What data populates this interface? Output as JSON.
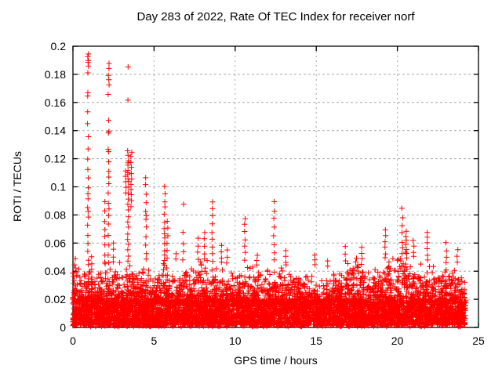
{
  "chart_data": {
    "type": "scatter",
    "title": "Day 283 of 2022, Rate Of TEC Index for receiver norf",
    "xlabel": "GPS time / hours",
    "ylabel": "ROTI / TECUs",
    "xlim": [
      0,
      25
    ],
    "ylim": [
      0,
      0.2
    ],
    "xticks": [
      0,
      5,
      10,
      15,
      20,
      25
    ],
    "xtick_labels": [
      "0",
      "5",
      "10",
      "15",
      "20",
      "25"
    ],
    "yticks": [
      0,
      0.02,
      0.04,
      0.06,
      0.08,
      0.1,
      0.12,
      0.14,
      0.16,
      0.18,
      0.2
    ],
    "ytick_labels": [
      "0",
      "0.02",
      "0.04",
      "0.06",
      "0.08",
      "0.1",
      "0.12",
      "0.14",
      "0.16",
      "0.18",
      "0.2"
    ],
    "grid": true,
    "legend": "none",
    "marker": {
      "shape": "plus",
      "size": 7,
      "color": "#ff0000"
    },
    "colors": {
      "axis": "#000000",
      "grid": "#a8a8a8",
      "text": "#000000",
      "background": "#ffffff"
    },
    "data": {
      "x_start": 0,
      "x_end": 24.2,
      "dense_band": {
        "y_min": 0.002,
        "y_max": 0.018,
        "points": 4600
      },
      "low_scatter": {
        "y_min": 0.0006,
        "y_max": 0.003,
        "points": 320
      },
      "tail_band": {
        "step_hours": 0.5,
        "base": 0.018,
        "points": 2400,
        "envelope": [
          0.04,
          0.036,
          0.038,
          0.034,
          0.042,
          0.044,
          0.038,
          0.042,
          0.034,
          0.04,
          0.03,
          0.044,
          0.036,
          0.032,
          0.038,
          0.042,
          0.044,
          0.04,
          0.044,
          0.036,
          0.032,
          0.04,
          0.042,
          0.038,
          0.042,
          0.036,
          0.04,
          0.036,
          0.032,
          0.036,
          0.03,
          0.028,
          0.034,
          0.038,
          0.042,
          0.046,
          0.04,
          0.036,
          0.042,
          0.046,
          0.044,
          0.05,
          0.04,
          0.044,
          0.042,
          0.038,
          0.04,
          0.036,
          0.034
        ]
      },
      "spikes": [
        {
          "hour": 0.12,
          "values": [
            0.049,
            0.045,
            0.042
          ]
        },
        {
          "hour": 0.93,
          "values": [
            0.194,
            0.192,
            0.19,
            0.188,
            0.186,
            0.181,
            0.167,
            0.164,
            0.153,
            0.145,
            0.135,
            0.127,
            0.12,
            0.113,
            0.107,
            0.1,
            0.095,
            0.092,
            0.085,
            0.082,
            0.078,
            0.072,
            0.066,
            0.06,
            0.054,
            0.048,
            0.044
          ]
        },
        {
          "hour": 1.15,
          "values": [
            0.05,
            0.046,
            0.042
          ]
        },
        {
          "hour": 1.95,
          "values": [
            0.09,
            0.083,
            0.075,
            0.07,
            0.064,
            0.058,
            0.052,
            0.047
          ]
        },
        {
          "hour": 2.2,
          "values": [
            0.187,
            0.184,
            0.18,
            0.176,
            0.172,
            0.166,
            0.148,
            0.14,
            0.139,
            0.127,
            0.125,
            0.118,
            0.111,
            0.107,
            0.102,
            0.095,
            0.088,
            0.085,
            0.08,
            0.073,
            0.066,
            0.059,
            0.052,
            0.046
          ]
        },
        {
          "hour": 2.5,
          "values": [
            0.06,
            0.055,
            0.05,
            0.046
          ]
        },
        {
          "hour": 3.25,
          "values": [
            0.112,
            0.108,
            0.104,
            0.1,
            0.096
          ]
        },
        {
          "hour": 3.4,
          "values": [
            0.186,
            0.161,
            0.125,
            0.122,
            0.119,
            0.117,
            0.115,
            0.112,
            0.11,
            0.108,
            0.106,
            0.103,
            0.099,
            0.095,
            0.091,
            0.087,
            0.083,
            0.079,
            0.075,
            0.071,
            0.067,
            0.063,
            0.059,
            0.055,
            0.051,
            0.047
          ]
        },
        {
          "hour": 3.6,
          "values": [
            0.124,
            0.121,
            0.118,
            0.114,
            0.11,
            0.106,
            0.102,
            0.098,
            0.094,
            0.09,
            0.086
          ]
        },
        {
          "hour": 4.5,
          "values": [
            0.107,
            0.102,
            0.094,
            0.088,
            0.083,
            0.08,
            0.077,
            0.071,
            0.065,
            0.059,
            0.053,
            0.048
          ]
        },
        {
          "hour": 5.65,
          "values": [
            0.1,
            0.095,
            0.09,
            0.085,
            0.08,
            0.075,
            0.071,
            0.067,
            0.063,
            0.059,
            0.055,
            0.051,
            0.047
          ]
        },
        {
          "hour": 5.82,
          "values": [
            0.075,
            0.07,
            0.065,
            0.06,
            0.055,
            0.05
          ]
        },
        {
          "hour": 6.35,
          "values": [
            0.052,
            0.048
          ]
        },
        {
          "hour": 6.8,
          "values": [
            0.087,
            0.067,
            0.06,
            0.054,
            0.048
          ]
        },
        {
          "hour": 7.7,
          "values": [
            0.063,
            0.058,
            0.053,
            0.048
          ]
        },
        {
          "hour": 8.1,
          "values": [
            0.068,
            0.063,
            0.058,
            0.053,
            0.048
          ]
        },
        {
          "hour": 8.6,
          "values": [
            0.09,
            0.084,
            0.079,
            0.073,
            0.068,
            0.062,
            0.057,
            0.052,
            0.047
          ]
        },
        {
          "hour": 9.15,
          "values": [
            0.058,
            0.054,
            0.05,
            0.046
          ]
        },
        {
          "hour": 9.5,
          "values": [
            0.055,
            0.05,
            0.046
          ]
        },
        {
          "hour": 10.6,
          "values": [
            0.078,
            0.073,
            0.068,
            0.063,
            0.058,
            0.053,
            0.048
          ]
        },
        {
          "hour": 11.35,
          "values": [
            0.052,
            0.048,
            0.044
          ]
        },
        {
          "hour": 12.4,
          "values": [
            0.089,
            0.083,
            0.077,
            0.071,
            0.065,
            0.059,
            0.053,
            0.048
          ]
        },
        {
          "hour": 13.1,
          "values": [
            0.055,
            0.05,
            0.046
          ]
        },
        {
          "hour": 14.9,
          "values": [
            0.052,
            0.048,
            0.044
          ]
        },
        {
          "hour": 15.7,
          "values": [
            0.048,
            0.044
          ]
        },
        {
          "hour": 16.8,
          "values": [
            0.057,
            0.052,
            0.047
          ]
        },
        {
          "hour": 17.8,
          "values": [
            0.057,
            0.053,
            0.049,
            0.045
          ]
        },
        {
          "hour": 19.25,
          "values": [
            0.07,
            0.065,
            0.061,
            0.057,
            0.053,
            0.049
          ]
        },
        {
          "hour": 20.3,
          "values": [
            0.085,
            0.078,
            0.073,
            0.067,
            0.061,
            0.056,
            0.052
          ]
        },
        {
          "hour": 20.55,
          "values": [
            0.068,
            0.065,
            0.062,
            0.059,
            0.056,
            0.053,
            0.05
          ]
        },
        {
          "hour": 21.0,
          "values": [
            0.062,
            0.058,
            0.054,
            0.05
          ]
        },
        {
          "hour": 21.85,
          "values": [
            0.068,
            0.064,
            0.06,
            0.056,
            0.052,
            0.048
          ]
        },
        {
          "hour": 23.0,
          "values": [
            0.06,
            0.055,
            0.05,
            0.046
          ]
        },
        {
          "hour": 23.7,
          "values": [
            0.055,
            0.051,
            0.047
          ]
        }
      ]
    }
  }
}
